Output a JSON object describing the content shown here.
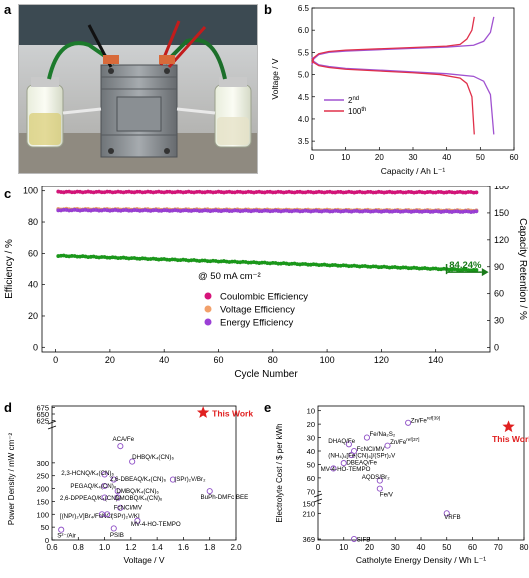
{
  "panels": {
    "a": "a",
    "b": "b",
    "c": "c",
    "d": "d",
    "e": "e"
  },
  "chart_data": [
    {
      "panel": "b",
      "type": "line",
      "xlabel": "Capacity / Ah L⁻¹",
      "ylabel": "Voltage / V",
      "xlim": [
        0,
        60
      ],
      "ylim": [
        3.3,
        6.5
      ],
      "xticks": [
        0,
        10,
        20,
        30,
        40,
        50,
        60
      ],
      "yticks": [
        3.5,
        4.0,
        4.5,
        5.0,
        5.5,
        6.0,
        6.5
      ],
      "legend_position": "lower-left",
      "series": [
        {
          "name": "2nd",
          "label_base": "2",
          "label_sup": "nd",
          "color": "#a052d0",
          "charge": [
            [
              0,
              5.22
            ],
            [
              0.5,
              5.35
            ],
            [
              2,
              5.45
            ],
            [
              5,
              5.5
            ],
            [
              10,
              5.53
            ],
            [
              20,
              5.56
            ],
            [
              30,
              5.59
            ],
            [
              40,
              5.62
            ],
            [
              48,
              5.66
            ],
            [
              51,
              5.75
            ],
            [
              53,
              5.95
            ],
            [
              54,
              6.3
            ]
          ],
          "discharge": [
            [
              0,
              5.4
            ],
            [
              0.5,
              5.3
            ],
            [
              2,
              5.22
            ],
            [
              5,
              5.18
            ],
            [
              10,
              5.14
            ],
            [
              20,
              5.1
            ],
            [
              30,
              5.06
            ],
            [
              40,
              5.02
            ],
            [
              48,
              4.96
            ],
            [
              51,
              4.85
            ],
            [
              53,
              4.55
            ],
            [
              54,
              3.65
            ]
          ]
        },
        {
          "name": "100th",
          "label_base": "100",
          "label_sup": "th",
          "color": "#e0304a",
          "charge": [
            [
              0,
              5.26
            ],
            [
              0.5,
              5.38
            ],
            [
              2,
              5.47
            ],
            [
              5,
              5.52
            ],
            [
              10,
              5.55
            ],
            [
              20,
              5.58
            ],
            [
              30,
              5.61
            ],
            [
              40,
              5.64
            ],
            [
              44,
              5.68
            ],
            [
              46,
              5.8
            ],
            [
              47.5,
              6.0
            ],
            [
              48.2,
              6.3
            ]
          ],
          "discharge": [
            [
              0,
              5.36
            ],
            [
              0.5,
              5.27
            ],
            [
              2,
              5.2
            ],
            [
              5,
              5.16
            ],
            [
              10,
              5.12
            ],
            [
              20,
              5.08
            ],
            [
              30,
              5.04
            ],
            [
              38,
              5.0
            ],
            [
              44,
              4.92
            ],
            [
              46,
              4.8
            ],
            [
              47.5,
              4.5
            ],
            [
              48.2,
              3.65
            ]
          ]
        }
      ]
    },
    {
      "panel": "c",
      "type": "scatter",
      "xlabel": "Cycle Number",
      "ylabel": "Efficiency / %",
      "y2label": "Capacity Retention / %",
      "xlim": [
        -5,
        160
      ],
      "ylim": [
        -3,
        103
      ],
      "y2lim": [
        -5,
        180
      ],
      "xticks": [
        0,
        20,
        40,
        60,
        80,
        100,
        120,
        140
      ],
      "yticks": [
        0,
        20,
        40,
        60,
        80,
        100
      ],
      "y2ticks": [
        0,
        30,
        60,
        90,
        120,
        150,
        180
      ],
      "annotation_current": "@ 50 mA cm⁻²",
      "annotation_retention": "84.24%",
      "legend_position": "lower-left",
      "cycles": 155,
      "series": [
        {
          "name": "Coulombic Efficiency",
          "color": "#d6147a",
          "start": 99.2,
          "end": 99.0
        },
        {
          "name": "Voltage Efficiency",
          "color": "#f2a06a",
          "start": 88.2,
          "end": 87.3
        },
        {
          "name": "Energy Efficiency",
          "color": "#9b3fd6",
          "start": 87.6,
          "end": 86.6
        },
        {
          "name": "Capacity Retention",
          "color": "#1a9a1a",
          "start": 58.5,
          "end": 49.2
        }
      ]
    },
    {
      "panel": "d",
      "type": "scatter",
      "xlabel": "Voltage / V",
      "ylabel": "Power Density / mW cm⁻²",
      "xlim": [
        0.6,
        2.0
      ],
      "xticks": [
        0.6,
        0.8,
        1.0,
        1.2,
        1.4,
        1.6,
        1.8,
        2.0
      ],
      "yticks_upper": [
        625,
        650,
        675
      ],
      "yticks_lower": [
        0,
        50,
        100,
        150,
        200,
        250,
        300
      ],
      "highlight": {
        "label": "This Work",
        "x": 1.75,
        "y": 655,
        "color": "#e02020"
      },
      "points": [
        {
          "label": "ACA/Fe",
          "x": 1.12,
          "y": 365,
          "lx": 1.06,
          "ly": 395
        },
        {
          "label": "DHBQ/K₄(CN)₆",
          "x": 1.21,
          "y": 305,
          "lx": 1.21,
          "ly": 325
        },
        {
          "label": "2,3-HCNQ/K₄(CN)₆",
          "x": 1.0,
          "y": 255,
          "lx": 0.67,
          "ly": 263
        },
        {
          "label": "2,6-DBEAQ/K₄(CN)₆",
          "x": 1.07,
          "y": 235,
          "lx": 1.04,
          "ly": 240
        },
        {
          "label": "(SPr)₂V/Br₂",
          "x": 1.52,
          "y": 235,
          "lx": 1.53,
          "ly": 240
        },
        {
          "label": "PEGAQ/K₄(CN)₆",
          "x": 1.0,
          "y": 210,
          "lx": 0.74,
          "ly": 212
        },
        {
          "label": "DMBQ/K₄(CN)₆",
          "x": 1.1,
          "y": 190,
          "lx": 1.09,
          "ly": 192
        },
        {
          "label": "BuPh-DMFc BEE",
          "x": 1.8,
          "y": 190,
          "lx": 1.73,
          "ly": 170
        },
        {
          "label": "2,6-DPPEAQ/K₄(CN)₆",
          "x": 1.0,
          "y": 165,
          "lx": 0.66,
          "ly": 165
        },
        {
          "label": "DMOBQ/K₄(CN)₆",
          "x": 1.1,
          "y": 165,
          "lx": 1.08,
          "ly": 165
        },
        {
          "label": "FcNCl/MV",
          "x": 1.12,
          "y": 125,
          "lx": 1.07,
          "ly": 128
        },
        {
          "label": "[(NPr)₂V]Br₄/FcNCl",
          "x": 0.98,
          "y": 100,
          "lx": 0.66,
          "ly": 95
        },
        {
          "label": "(SPr)₂V/KI",
          "x": 1.02,
          "y": 100,
          "lx": 1.05,
          "ly": 95
        },
        {
          "label": "MV-4-HO-TEMPO",
          "x": 1.25,
          "y": 75,
          "lx": 1.2,
          "ly": 65
        },
        {
          "label": "S²⁻/Air",
          "x": 0.67,
          "y": 40,
          "lx": 0.64,
          "ly": 20
        },
        {
          "label": "PSIB",
          "x": 1.07,
          "y": 45,
          "lx": 1.04,
          "ly": 22
        }
      ]
    },
    {
      "panel": "e",
      "type": "scatter",
      "xlabel": "Catholyte Energy Density / Wh L⁻¹",
      "ylabel": "Electrolyte Cost / $ per kWh",
      "xlim": [
        0,
        80
      ],
      "xticks": [
        0,
        10,
        20,
        30,
        40,
        50,
        60,
        70,
        80
      ],
      "yticks_upper": [
        10,
        20,
        30,
        40,
        50,
        60,
        70
      ],
      "yticks_lower": [
        150,
        210,
        369
      ],
      "highlight": {
        "label": "This Work",
        "x": 74,
        "y": 22,
        "color": "#e02020"
      },
      "points": [
        {
          "label": "Zn/Fe^ref[39]",
          "x": 35,
          "y": 19,
          "lx": 36,
          "ly": 17
        },
        {
          "label": "Fe/Na₂S₂",
          "x": 19,
          "y": 30,
          "lx": 20,
          "ly": 27
        },
        {
          "label": "DHAQ/Fe",
          "x": 12,
          "y": 35,
          "lx": 4,
          "ly": 32
        },
        {
          "label": "Zn/Fe^ref[37]",
          "x": 27,
          "y": 36,
          "lx": 28,
          "ly": 33
        },
        {
          "label": "FcNCl/MV",
          "x": 14,
          "y": 40,
          "lx": 15,
          "ly": 38
        },
        {
          "label": "(NH₄)₄[Fe(CN)₆]/(SPr)₂V",
          "x": 13,
          "y": 43,
          "lx": 4,
          "ly": 43
        },
        {
          "label": "DBEAQ/Fe",
          "x": 10,
          "y": 49,
          "lx": 11,
          "ly": 48
        },
        {
          "label": "MV-4-HO-TEMPO",
          "x": 6,
          "y": 53,
          "lx": 1,
          "ly": 53
        },
        {
          "label": "AQDS/Br₂",
          "x": 24,
          "y": 62,
          "lx": 17,
          "ly": 59
        },
        {
          "label": "Fe/V",
          "x": 24,
          "y": 68,
          "lx": 24,
          "ly": 72
        },
        {
          "label": "VRFB",
          "x": 50,
          "y": 210,
          "lx": 49,
          "ly": 230
        },
        {
          "label": "SIFB",
          "x": 14,
          "y": 369,
          "lx": 15,
          "ly": 369
        }
      ]
    }
  ]
}
